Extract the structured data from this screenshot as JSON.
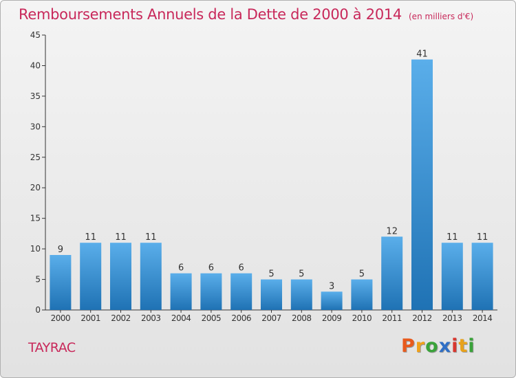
{
  "chart_data": {
    "type": "bar",
    "title": "Remboursements Annuels de la Dette de 2000 à 2014",
    "subtitle": "(en milliers d'€)",
    "categories": [
      "2000",
      "2001",
      "2002",
      "2003",
      "2004",
      "2005",
      "2006",
      "2007",
      "2008",
      "2009",
      "2010",
      "2011",
      "2012",
      "2013",
      "2014"
    ],
    "values": [
      9,
      11,
      11,
      11,
      6,
      6,
      6,
      5,
      5,
      3,
      5,
      12,
      41,
      11,
      11
    ],
    "ylim": [
      0,
      45
    ],
    "yticks": [
      0,
      5,
      10,
      15,
      20,
      25,
      30,
      35,
      40,
      45
    ],
    "grid": false,
    "xlabel": "",
    "ylabel": ""
  },
  "commune": "TAYRAC",
  "logo": {
    "letters": [
      "P",
      "r",
      "o",
      "x",
      "i",
      "t",
      "i"
    ],
    "colors": [
      "#e85a1c",
      "#f0a11a",
      "#3aa33a",
      "#2f6fc6",
      "#d8372f",
      "#e8a21c",
      "#3aa33a"
    ]
  },
  "colors": {
    "accent": "#c8285a",
    "bar_light": "#5aaeea",
    "bar_dark": "#1f72b4"
  }
}
